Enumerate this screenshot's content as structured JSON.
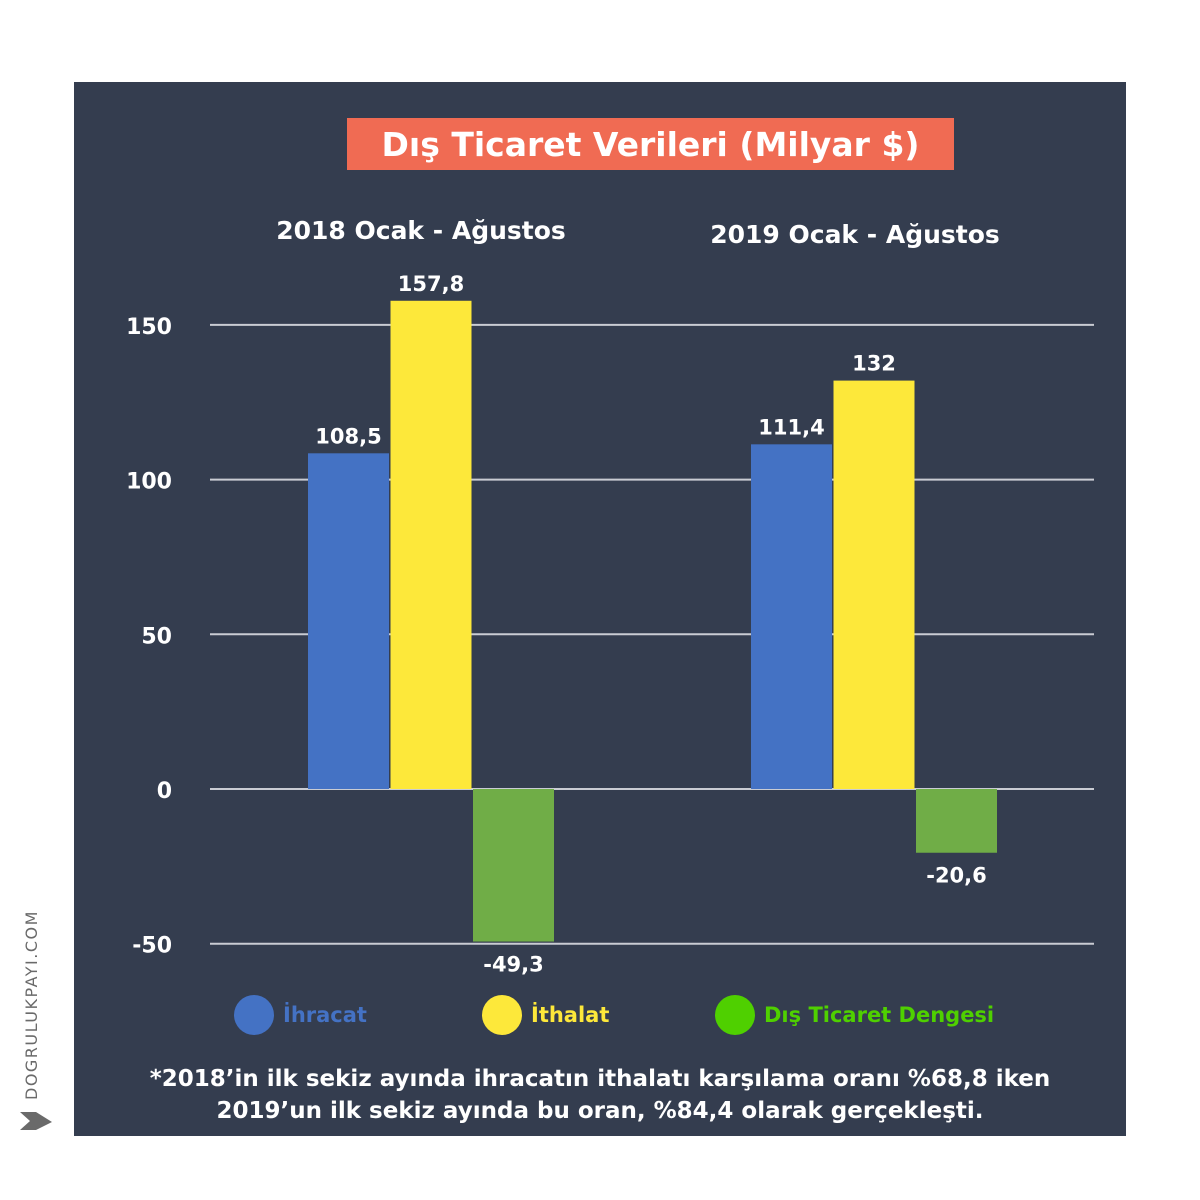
{
  "title": "Dış Ticaret Verileri (Milyar $)",
  "colors": {
    "background": "#343d4f",
    "title_bg": "#f06b53",
    "ihracat": "#4472c4",
    "ithalat": "#fde83a",
    "denge": "#70ad47",
    "legend_denge_dot": "#4fd000"
  },
  "chart_data": {
    "type": "bar",
    "title": "Dış Ticaret Verileri (Milyar $)",
    "categories": [
      "2018 Ocak - Ağustos",
      "2019 Ocak - Ağustos"
    ],
    "series": [
      {
        "name": "İhracat",
        "values": [
          108.5,
          111.4
        ],
        "labels": [
          "108,5",
          "111,4"
        ],
        "color": "#4472c4"
      },
      {
        "name": "İthalat",
        "values": [
          157.8,
          132
        ],
        "labels": [
          "157,8",
          "132"
        ],
        "color": "#fde83a"
      },
      {
        "name": "Dış Ticaret Dengesi",
        "values": [
          -49.3,
          -20.6
        ],
        "labels": [
          "-49,3",
          "-20,6"
        ],
        "color": "#70ad47"
      }
    ],
    "yticks": [
      "150",
      "100",
      "50",
      "0",
      "-50"
    ],
    "ytick_values": [
      150,
      100,
      50,
      0,
      -50
    ],
    "ylim": [
      -50,
      150
    ],
    "grid": true,
    "legend_position": "bottom"
  },
  "legend": [
    {
      "label": "İhracat",
      "dot_color": "#4472c4",
      "text_color": "#4472c4"
    },
    {
      "label": "İthalat",
      "dot_color": "#fde83a",
      "text_color": "#fde83a"
    },
    {
      "label": "Dış Ticaret Dengesi",
      "dot_color": "#4fd000",
      "text_color": "#4fd000"
    }
  ],
  "footnote": {
    "line1": "*2018’in ilk sekiz ayında ihracatın ithalatı karşılama oranı %68,8 iken",
    "line2": "2019’un ilk sekiz ayında bu oran, %84,4 olarak gerçekleşti."
  },
  "watermark": "DOGRULUKPAYI.COM"
}
